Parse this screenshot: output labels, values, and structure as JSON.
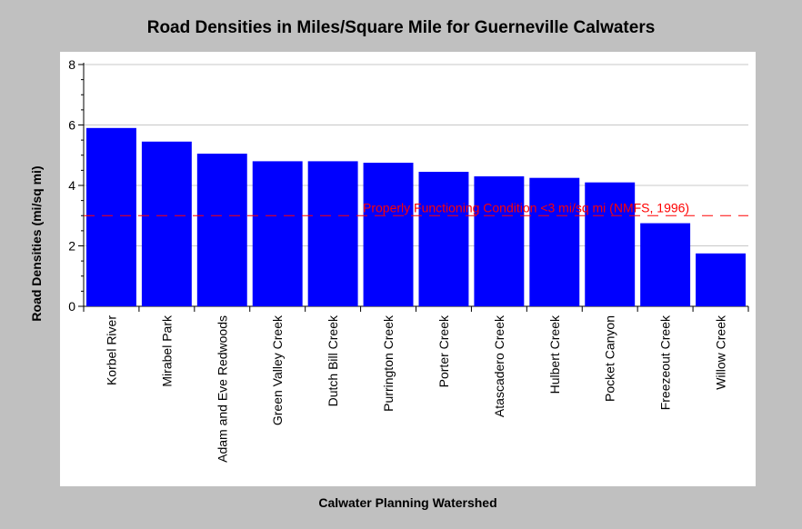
{
  "chart_data": {
    "type": "bar",
    "title": "Road Densities in Miles/Square Mile for Guerneville Calwaters",
    "xlabel": "Calwater Planning Watershed",
    "ylabel": "Road Densities (mi/sq mi)",
    "ylim": [
      0,
      8
    ],
    "yticks": [
      "0",
      "2",
      "4",
      "6",
      "8"
    ],
    "grid": true,
    "categories": [
      "Korbel River",
      "Mirabel Park",
      "Adam and Eve Redwoods",
      "Green Valley Creek",
      "Dutch Bill Creek",
      "Purrington Creek",
      "Porter Creek",
      "Atascadero Creek",
      "Hulbert Creek",
      "Pocket Canyon",
      "Freezeout Creek",
      "Willow Creek"
    ],
    "values": [
      5.9,
      5.45,
      5.05,
      4.8,
      4.8,
      4.75,
      4.45,
      4.3,
      4.25,
      4.1,
      2.75,
      1.75
    ],
    "reference_line": {
      "value": 3,
      "label": "Properly Functioning Condition <3 mi/sq mi (NMFS, 1996)",
      "color": "#ff0000"
    },
    "bar_color": "#0000ff",
    "background_color": "#c0c0c0",
    "plot_color": "#ffffff"
  }
}
